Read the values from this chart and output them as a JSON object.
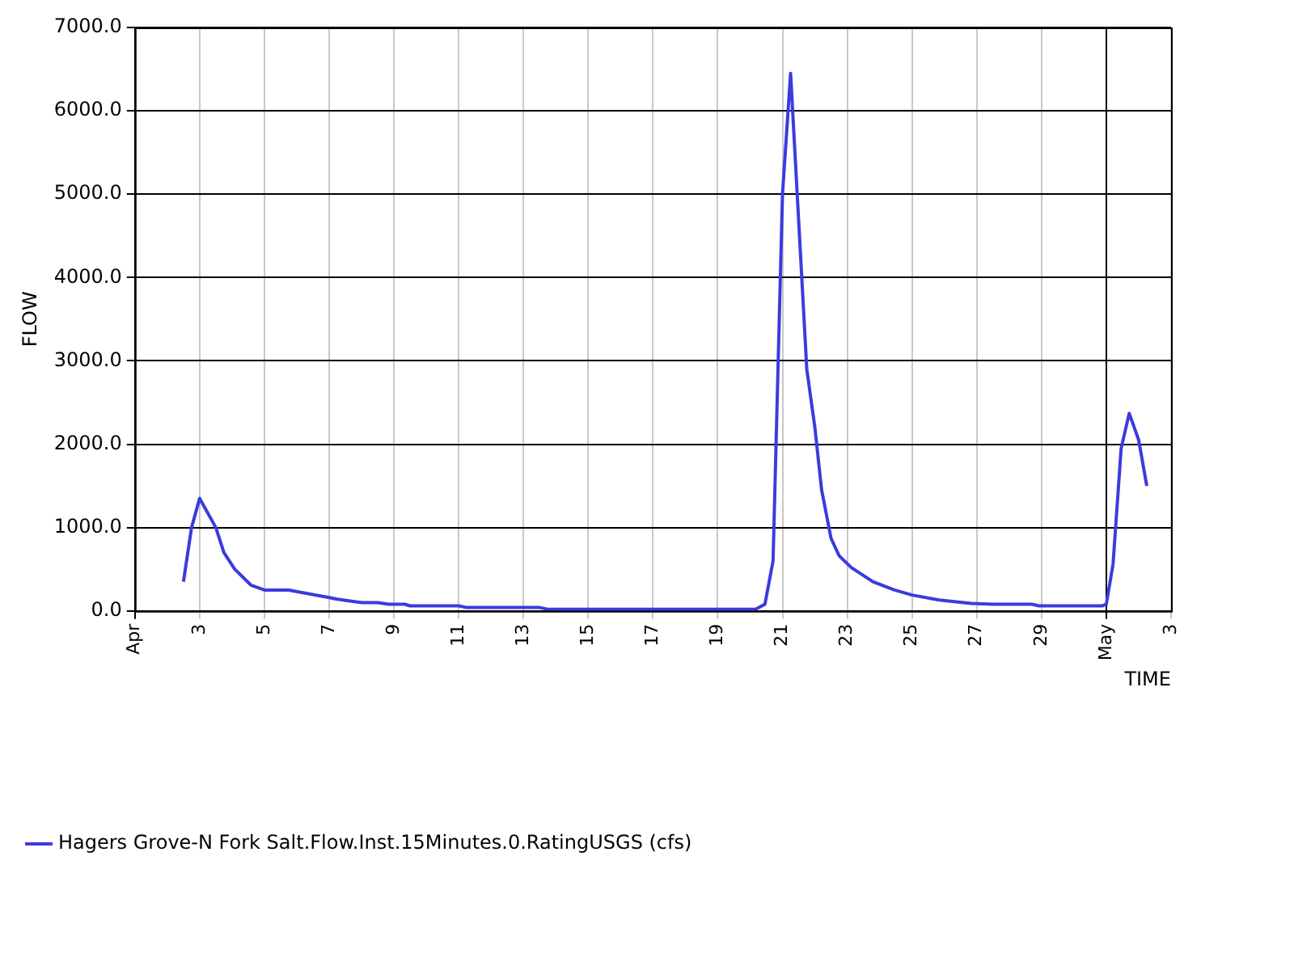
{
  "chart_data": {
    "type": "line",
    "xlabel": "TIME",
    "ylabel": "FLOW",
    "x": [
      "--04-02T12:00",
      "--04-02T18:00",
      "--04-03T00:00",
      "--04-03T12:00",
      "--04-03T18:00",
      "--04-04T02:00",
      "--04-04T14:00",
      "--04-05T00:00",
      "--04-05T18:00",
      "--04-07T00:00",
      "--04-07T06:00",
      "--04-08T00:00",
      "--04-08T12:00",
      "--04-08T20:00",
      "--04-09T08:00",
      "--04-09T12:00",
      "--04-11T00:00",
      "--04-11T06:00",
      "--04-13T12:00",
      "--04-13T18:00",
      "--04-20T04:00",
      "--04-20T11:00",
      "--04-20T17:00",
      "--04-21T00:00",
      "--04-21T06:00",
      "--04-21T18:00",
      "--04-22T00:00",
      "--04-22T05:00",
      "--04-22T12:00",
      "--04-22T18:00",
      "--04-23T03:00",
      "--04-23T19:00",
      "--04-24T11:00",
      "--04-25T00:00",
      "--04-25T20:00",
      "--04-26T20:00",
      "--04-27T12:00",
      "--04-28T17:00",
      "--04-28T22:00",
      "--04-30T21:00",
      "--05-01T00:00",
      "--05-01T05:00",
      "--05-01T11:00",
      "--05-01T17:00",
      "--05-02T00:00",
      "--05-02T06:00"
    ],
    "series": [
      {
        "name": "Hagers Grove-N Fork Salt.Flow.Inst.15Minutes.0.RatingUSGS (cfs)",
        "color": "#3b3bdf",
        "values": [
          350,
          1000,
          1350,
          1000,
          700,
          500,
          310,
          250,
          250,
          160,
          140,
          100,
          100,
          80,
          80,
          60,
          60,
          40,
          40,
          20,
          20,
          80,
          600,
          5000,
          6450,
          2900,
          2200,
          1450,
          870,
          660,
          520,
          350,
          250,
          190,
          130,
          90,
          80,
          80,
          60,
          60,
          80,
          560,
          1950,
          2370,
          2050,
          1500
        ]
      }
    ],
    "xlim": [
      "--04-01",
      "--05-03"
    ],
    "xticks": [
      {
        "value": "--04-01",
        "label": "Apr"
      },
      {
        "value": "--04-03",
        "label": "3"
      },
      {
        "value": "--04-05",
        "label": "5"
      },
      {
        "value": "--04-07",
        "label": "7"
      },
      {
        "value": "--04-09",
        "label": "9"
      },
      {
        "value": "--04-11",
        "label": "11"
      },
      {
        "value": "--04-13",
        "label": "13"
      },
      {
        "value": "--04-15",
        "label": "15"
      },
      {
        "value": "--04-17",
        "label": "17"
      },
      {
        "value": "--04-19",
        "label": "19"
      },
      {
        "value": "--04-21",
        "label": "21"
      },
      {
        "value": "--04-23",
        "label": "23"
      },
      {
        "value": "--04-25",
        "label": "25"
      },
      {
        "value": "--04-27",
        "label": "27"
      },
      {
        "value": "--04-29",
        "label": "29"
      },
      {
        "value": "--05-01",
        "label": "May"
      },
      {
        "value": "--05-03",
        "label": "3"
      }
    ],
    "ylim": [
      0,
      7000
    ],
    "yticks": [
      {
        "value": 0,
        "label": "0.0"
      },
      {
        "value": 1000,
        "label": "1000.0"
      },
      {
        "value": 2000,
        "label": "2000.0"
      },
      {
        "value": 3000,
        "label": "3000.0"
      },
      {
        "value": 4000,
        "label": "4000.0"
      },
      {
        "value": 5000,
        "label": "5000.0"
      },
      {
        "value": 6000,
        "label": "6000.0"
      },
      {
        "value": 7000,
        "label": "7000.0"
      }
    ],
    "grid": true,
    "legend": "bottom left",
    "marker": "none",
    "line_style": "solid"
  }
}
